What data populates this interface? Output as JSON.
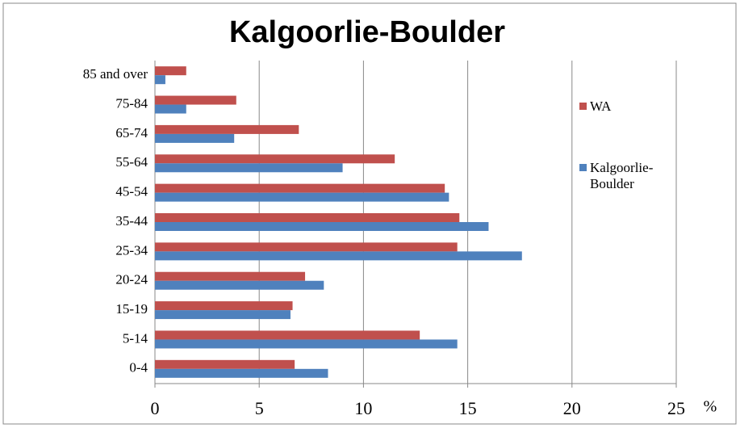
{
  "chart_data": {
    "type": "hbar",
    "title": "Kalgoorlie-Boulder",
    "x_label": "%",
    "categories": [
      "0-4",
      "5-14",
      "15-19",
      "20-24",
      "25-34",
      "35-44",
      "45-54",
      "55-64",
      "65-74",
      "75-84",
      "85 and over"
    ],
    "series": [
      {
        "name": "WA",
        "color": "#c0504d",
        "values": [
          6.7,
          12.7,
          6.6,
          7.2,
          14.5,
          14.6,
          13.9,
          11.5,
          6.9,
          3.9,
          1.5
        ]
      },
      {
        "name": "Kalgoorlie-Boulder",
        "color": "#4f81bd",
        "values": [
          8.3,
          14.5,
          6.5,
          8.1,
          17.6,
          16.0,
          14.1,
          9.0,
          3.8,
          1.5,
          0.5
        ]
      }
    ],
    "xlim": [
      0,
      25
    ],
    "xticks": [
      0,
      5,
      10,
      15,
      20,
      25
    ],
    "grid": true,
    "legend": "right"
  }
}
